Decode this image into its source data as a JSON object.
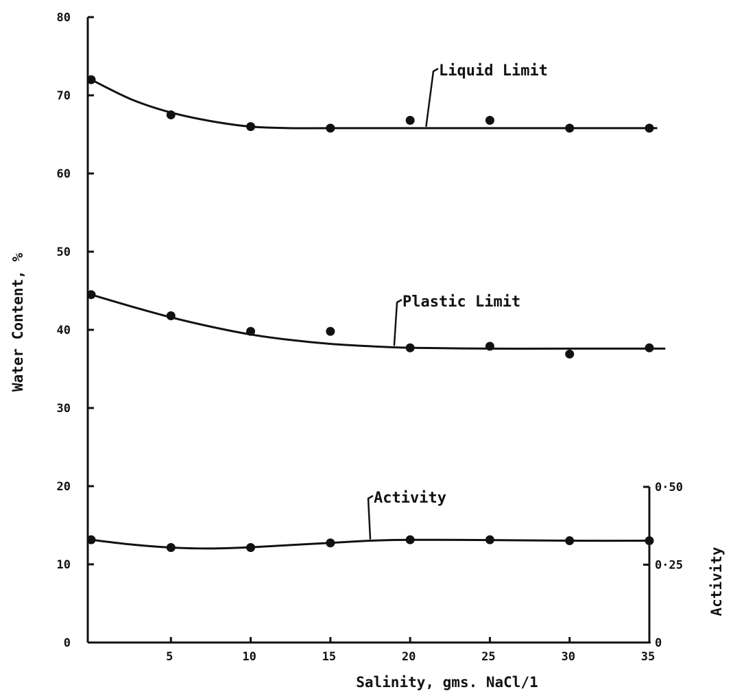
{
  "chart_data": {
    "type": "line",
    "title": "",
    "xlabel": "Salinity, gms. NaCl/1",
    "ylabel": "Water Content, %",
    "y2label": "Activity",
    "xlim": [
      0,
      35
    ],
    "ylim": [
      0,
      80
    ],
    "y2lim": [
      0,
      0.5
    ],
    "x_ticks": [
      "5",
      "10",
      "15",
      "20",
      "25",
      "30",
      "35"
    ],
    "y_ticks": [
      "0",
      "10",
      "20",
      "30",
      "40",
      "50",
      "60",
      "70",
      "80"
    ],
    "y2_ticks": [
      "0",
      "0·25",
      "0·50"
    ],
    "grid": false,
    "series": [
      {
        "name": "Liquid Limit",
        "axis": "left",
        "points": [
          [
            0,
            72
          ],
          [
            5,
            67.5
          ],
          [
            10,
            66
          ],
          [
            15,
            65.8
          ],
          [
            20,
            66.8
          ],
          [
            25,
            66.8
          ],
          [
            30,
            65.8
          ],
          [
            35,
            65.8
          ]
        ],
        "curve": [
          [
            0,
            72
          ],
          [
            2.5,
            69.5
          ],
          [
            5,
            67.8
          ],
          [
            7.5,
            66.7
          ],
          [
            10,
            66
          ],
          [
            12.5,
            65.8
          ],
          [
            15,
            65.8
          ],
          [
            20,
            65.8
          ],
          [
            25,
            65.8
          ],
          [
            30,
            65.8
          ],
          [
            35.5,
            65.8
          ]
        ]
      },
      {
        "name": "Plastic Limit",
        "axis": "left",
        "points": [
          [
            0,
            44.5
          ],
          [
            5,
            41.8
          ],
          [
            10,
            39.8
          ],
          [
            15,
            39.8
          ],
          [
            20,
            37.7
          ],
          [
            25,
            37.9
          ],
          [
            30,
            36.9
          ],
          [
            35,
            37.7
          ]
        ],
        "curve": [
          [
            0,
            44.5
          ],
          [
            2.5,
            43
          ],
          [
            5,
            41.6
          ],
          [
            7.5,
            40.4
          ],
          [
            10,
            39.4
          ],
          [
            12.5,
            38.7
          ],
          [
            15,
            38.2
          ],
          [
            17.5,
            37.9
          ],
          [
            20,
            37.7
          ],
          [
            25,
            37.6
          ],
          [
            30,
            37.6
          ],
          [
            36,
            37.6
          ]
        ]
      },
      {
        "name": "Activity",
        "axis": "right",
        "points": [
          [
            0,
            0.33
          ],
          [
            5,
            0.305
          ],
          [
            10,
            0.305
          ],
          [
            15,
            0.32
          ],
          [
            20,
            0.33
          ],
          [
            25,
            0.33
          ],
          [
            30,
            0.327
          ],
          [
            35,
            0.327
          ]
        ],
        "curve": [
          [
            0,
            0.33
          ],
          [
            2.5,
            0.315
          ],
          [
            5,
            0.305
          ],
          [
            7.5,
            0.302
          ],
          [
            10,
            0.306
          ],
          [
            12.5,
            0.313
          ],
          [
            15,
            0.32
          ],
          [
            17.5,
            0.327
          ],
          [
            20,
            0.33
          ],
          [
            25,
            0.329
          ],
          [
            30,
            0.327
          ],
          [
            35,
            0.327
          ]
        ]
      }
    ]
  }
}
